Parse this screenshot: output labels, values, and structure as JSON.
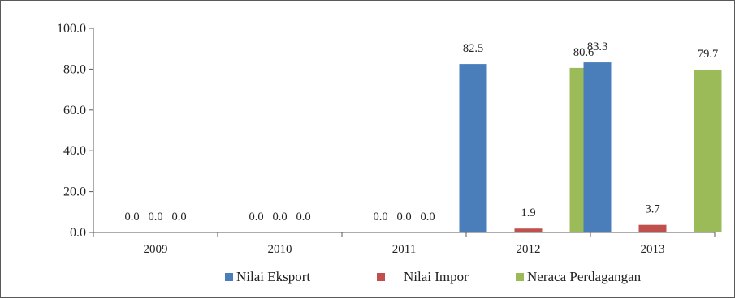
{
  "chart_data": {
    "type": "bar",
    "categories": [
      "2009",
      "2010",
      "2011",
      "2012",
      "2013"
    ],
    "series": [
      {
        "name": "Nilai Eksport",
        "color": "#4a7ebb",
        "values": [
          0.0,
          0.0,
          0.0,
          82.5,
          83.3
        ],
        "labels": [
          "0.0",
          "0.0",
          "0.0",
          "82.5",
          "83.3"
        ]
      },
      {
        "name": "Nilai Impor",
        "color": "#c0504d",
        "values": [
          0.0,
          0.0,
          0.0,
          1.9,
          3.7
        ],
        "labels": [
          "0.0",
          "0.0",
          "0.0",
          "1.9",
          "3.7"
        ]
      },
      {
        "name": "Neraca Perdagangan",
        "color": "#9bbb59",
        "values": [
          0.0,
          0.0,
          0.0,
          80.6,
          79.7
        ],
        "labels": [
          "0.0",
          "0.0",
          "0.0",
          "80.6",
          "79.7"
        ]
      }
    ],
    "ylim": [
      0,
      100
    ],
    "yticks": [
      "0.0",
      "20.0",
      "40.0",
      "60.0",
      "80.0",
      "100.0"
    ],
    "grid": false,
    "legend_position": "bottom",
    "title": "",
    "xlabel": "",
    "ylabel": ""
  }
}
